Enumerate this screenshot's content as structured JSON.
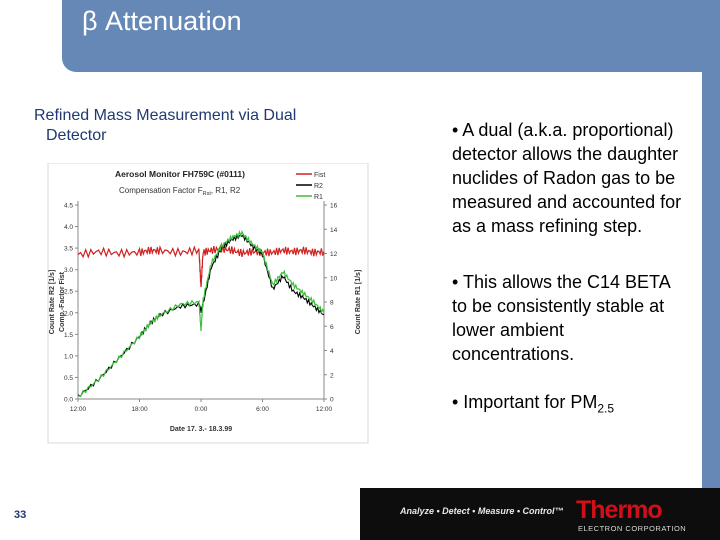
{
  "slide": {
    "title": "β Attenuation",
    "subtitle_line1": "Refined Mass Measurement via Dual",
    "subtitle_line2": "Detector",
    "page_number": "33"
  },
  "bullets": [
    {
      "text": "•  A dual (a.k.a. proportional) detector allows the daughter nuclides of Radon gas to be measured and accounted for as a mass refining step."
    },
    {
      "text": "• This allows the C14 BETA to be consistently stable at lower ambient concentrations."
    },
    {
      "text_main": "•  Important for PM",
      "text_sub": "2.5"
    }
  ],
  "footer": {
    "tagline": "Analyze • Detect • Measure • Control™",
    "logo": "Thermo",
    "logo_sub": "ELECTRON CORPORATION"
  },
  "colors": {
    "header_blue": "#6688b6",
    "fist_red": "#d02020",
    "r2_black": "#000000",
    "r1_green": "#3cbf3c"
  },
  "chart_data": {
    "type": "line",
    "title": "Aerosol Monitor FH759C (#0111)",
    "subtitle": "Compensation Factor F",
    "subtitle_sub": "Rst",
    "subtitle_end": ", R1, R2",
    "xlabel": "Date 17. 3.- 18.3.99",
    "ylabel_left_1": "Count Rate R2 [1/s]",
    "ylabel_left_2": "Comp.-Factor Fist",
    "ylabel_right": "Count Rate R1 [1/s]",
    "x_ticks": [
      "12:00",
      "18:00",
      "0:00",
      "6:00",
      "12:00"
    ],
    "y_left_ticks": [
      "0.0",
      "0.5",
      "1.0",
      "1.5",
      "2.0",
      "2.5",
      "3.0",
      "3.5",
      "4.0",
      "4.5"
    ],
    "y_right_ticks": [
      "0",
      "2",
      "4",
      "6",
      "8",
      "10",
      "12",
      "14",
      "16"
    ],
    "ylim_left": [
      0,
      4.5
    ],
    "ylim_right": [
      0,
      16
    ],
    "legend": [
      "Fist",
      "R2",
      "R1"
    ],
    "legend_position": "top-right",
    "x_hours": [
      0,
      2,
      4,
      6,
      7,
      8,
      10,
      11.8,
      12,
      12.2,
      13,
      14,
      15,
      16,
      17,
      18,
      19,
      20,
      21,
      22,
      23,
      24
    ],
    "series": [
      {
        "name": "Fist",
        "values": [
          3.35,
          3.42,
          3.38,
          3.4,
          3.45,
          3.44,
          3.4,
          3.45,
          2.6,
          3.4,
          3.45,
          3.48,
          3.45,
          3.38,
          3.42,
          3.4,
          3.4,
          3.45,
          3.42,
          3.45,
          3.4,
          3.42
        ]
      },
      {
        "name": "R2",
        "values": [
          0.05,
          0.45,
          0.95,
          1.45,
          1.75,
          1.95,
          2.15,
          2.2,
          2.05,
          2.2,
          3.05,
          3.5,
          3.7,
          3.8,
          3.55,
          3.35,
          2.55,
          2.85,
          2.5,
          2.35,
          2.15,
          1.95
        ]
      },
      {
        "name": "R1",
        "values": [
          0.05,
          0.45,
          0.95,
          1.45,
          1.75,
          1.95,
          2.2,
          2.25,
          1.6,
          2.3,
          3.15,
          3.55,
          3.75,
          3.85,
          3.6,
          3.4,
          2.65,
          2.95,
          2.65,
          2.45,
          2.25,
          2.0
        ]
      }
    ]
  }
}
